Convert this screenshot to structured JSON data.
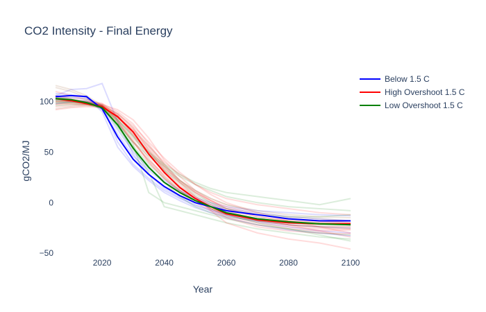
{
  "chart_data": {
    "type": "line",
    "title": "CO2 Intensity - Final Energy",
    "xlabel": "Year",
    "ylabel": "gCO2/MJ",
    "xlim": [
      2005,
      2100
    ],
    "ylim": [
      -52,
      132
    ],
    "xticks": [
      2020,
      2040,
      2060,
      2080,
      2100
    ],
    "yticks": [
      -50,
      0,
      50,
      100
    ],
    "grid": false,
    "legend_position": "top-right",
    "series": [
      {
        "name": "Below 1.5 C",
        "color": "#0000ff",
        "x": [
          2005,
          2010,
          2015,
          2020,
          2025,
          2030,
          2035,
          2040,
          2045,
          2050,
          2055,
          2060,
          2070,
          2080,
          2090,
          2100
        ],
        "y": [
          105,
          106,
          105,
          93,
          65,
          43,
          28,
          16,
          7,
          0,
          -4,
          -8,
          -12,
          -16,
          -18,
          -18
        ]
      },
      {
        "name": "High Overshoot 1.5 C",
        "color": "#ff0000",
        "x": [
          2005,
          2010,
          2015,
          2020,
          2025,
          2030,
          2035,
          2040,
          2045,
          2050,
          2055,
          2060,
          2070,
          2080,
          2090,
          2100
        ],
        "y": [
          103,
          101,
          98,
          95,
          85,
          70,
          48,
          30,
          15,
          4,
          -4,
          -11,
          -17,
          -20,
          -21,
          -21
        ]
      },
      {
        "name": "Low Overshoot 1.5 C",
        "color": "#008000",
        "x": [
          2005,
          2010,
          2015,
          2020,
          2025,
          2030,
          2035,
          2040,
          2045,
          2050,
          2055,
          2060,
          2070,
          2080,
          2090,
          2100
        ],
        "y": [
          103,
          102,
          99,
          94,
          77,
          54,
          35,
          20,
          10,
          2,
          -4,
          -10,
          -16,
          -19,
          -21,
          -22
        ]
      }
    ],
    "background_traces": {
      "description": "many faint individual scenario lines behind the means",
      "colors": [
        "#0000ff",
        "#ff0000",
        "#008000",
        "#8b4513"
      ],
      "x": [
        2005,
        2010,
        2015,
        2020,
        2025,
        2030,
        2035,
        2040,
        2045,
        2050,
        2055,
        2060,
        2070,
        2080,
        2090,
        2100
      ],
      "y": [
        [
          106,
          112,
          113,
          118,
          80,
          48,
          28,
          14,
          5,
          -2,
          -7,
          -12,
          -18,
          -22,
          -24,
          -25
        ],
        [
          104,
          104,
          103,
          96,
          60,
          38,
          24,
          12,
          4,
          -3,
          -8,
          -13,
          -19,
          -24,
          -28,
          -30
        ],
        [
          98,
          100,
          101,
          92,
          68,
          46,
          32,
          20,
          11,
          4,
          -2,
          -6,
          -10,
          -14,
          -16,
          -18
        ],
        [
          108,
          107,
          104,
          90,
          55,
          36,
          22,
          10,
          2,
          -5,
          -10,
          -15,
          -22,
          -27,
          -30,
          -33
        ],
        [
          102,
          102,
          100,
          94,
          72,
          50,
          34,
          22,
          12,
          5,
          0,
          -4,
          -8,
          -10,
          -12,
          -13
        ],
        [
          110,
          106,
          102,
          98,
          90,
          78,
          58,
          38,
          22,
          10,
          2,
          -6,
          -14,
          -18,
          -20,
          -20
        ],
        [
          100,
          100,
          99,
          96,
          88,
          74,
          52,
          32,
          16,
          4,
          -6,
          -14,
          -22,
          -26,
          -28,
          -27
        ],
        [
          95,
          96,
          97,
          97,
          92,
          82,
          64,
          42,
          26,
          12,
          2,
          -6,
          -14,
          -18,
          -19,
          -18
        ],
        [
          104,
          102,
          100,
          98,
          86,
          66,
          44,
          26,
          12,
          2,
          -6,
          -12,
          -20,
          -24,
          -26,
          -26
        ],
        [
          97,
          98,
          97,
          95,
          84,
          72,
          56,
          40,
          28,
          18,
          10,
          4,
          -2,
          -6,
          -10,
          -12
        ],
        [
          106,
          103,
          99,
          96,
          80,
          62,
          40,
          24,
          10,
          0,
          -8,
          -15,
          -24,
          -28,
          -30,
          -31
        ],
        [
          92,
          94,
          95,
          94,
          86,
          68,
          50,
          34,
          20,
          10,
          2,
          -4,
          -12,
          -16,
          -18,
          -20
        ],
        [
          101,
          100,
          98,
          96,
          88,
          76,
          60,
          44,
          30,
          18,
          8,
          0,
          -10,
          -18,
          -24,
          -30
        ],
        [
          103,
          101,
          100,
          97,
          82,
          60,
          42,
          28,
          16,
          6,
          -2,
          -8,
          -16,
          -22,
          -28,
          -34
        ],
        [
          99,
          99,
          98,
          95,
          80,
          58,
          10,
          0,
          -4,
          -8,
          -12,
          -16,
          -22,
          -26,
          -30,
          -32
        ],
        [
          104,
          102,
          100,
          95,
          74,
          52,
          36,
          20,
          6,
          -4,
          -10,
          -14,
          -18,
          -20,
          -22,
          -22
        ],
        [
          98,
          99,
          99,
          96,
          82,
          64,
          48,
          36,
          26,
          18,
          12,
          6,
          0,
          -4,
          -6,
          -8
        ],
        [
          102,
          101,
          99,
          94,
          76,
          54,
          30,
          -4,
          -8,
          -12,
          -16,
          -20,
          -26,
          -30,
          -34,
          -36
        ],
        [
          100,
          100,
          98,
          93,
          78,
          60,
          46,
          32,
          20,
          8,
          0,
          -6,
          -12,
          -14,
          -14,
          -12
        ],
        [
          96,
          97,
          97,
          94,
          82,
          66,
          50,
          38,
          28,
          20,
          14,
          10,
          6,
          2,
          -2,
          4
        ],
        [
          101,
          101,
          99,
          95,
          76,
          56,
          38,
          24,
          12,
          2,
          -6,
          -12,
          -20,
          -26,
          -32,
          -38
        ],
        [
          116,
          112,
          106,
          96,
          82,
          66,
          48,
          32,
          18,
          6,
          -2,
          -10,
          -18,
          -22,
          -24,
          -26
        ],
        [
          114,
          110,
          104,
          94,
          78,
          60,
          42,
          26,
          14,
          4,
          -4,
          -10,
          -16,
          -20,
          -22,
          -22
        ],
        [
          104,
          104,
          102,
          96,
          84,
          68,
          50,
          34,
          22,
          12,
          4,
          -2,
          -10,
          -14,
          -16,
          -18
        ],
        [
          93,
          95,
          96,
          95,
          86,
          70,
          52,
          36,
          22,
          12,
          4,
          -2,
          -8,
          -12,
          -14,
          -15
        ],
        [
          100,
          100,
          99,
          96,
          86,
          72,
          54,
          36,
          20,
          6,
          -8,
          -20,
          -30,
          -36,
          -40,
          -46
        ],
        [
          102,
          101,
          100,
          97,
          88,
          74,
          56,
          38,
          22,
          10,
          0,
          -8,
          -18,
          -22,
          -24,
          -24
        ],
        [
          98,
          98,
          97,
          94,
          80,
          60,
          40,
          24,
          12,
          2,
          -6,
          -12,
          -18,
          -22,
          -24,
          -24
        ]
      ],
      "trace_colors": [
        0,
        0,
        0,
        0,
        0,
        1,
        1,
        1,
        1,
        1,
        1,
        1,
        1,
        1,
        2,
        2,
        2,
        2,
        2,
        2,
        2,
        3,
        3,
        3,
        3,
        1,
        3,
        1
      ]
    }
  }
}
